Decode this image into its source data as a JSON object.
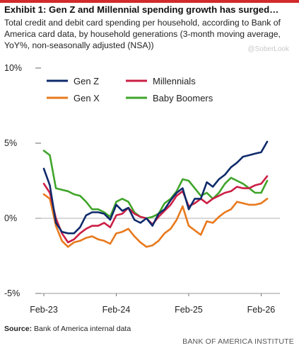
{
  "header": {
    "title": "Exhibit 1: Gen Z and Millennial spending growth has surged…",
    "subtitle": "Total credit and debit card spending per household, according to Bank of America card data, by household generations (3-month moving average, YoY%, non-seasonally adjusted (NSA))",
    "watermark": "@SoberLook"
  },
  "footer": {
    "source_label": "Source:",
    "source_text": " Bank of America internal data",
    "brand": "BANK OF AMERICA INSTITUTE"
  },
  "colors": {
    "Gen Z": "#0f2a6b",
    "Millennials": "#cc1f45",
    "Gen X": "#e8791d",
    "Baby Boomers": "#3fa52a"
  },
  "chart_data": {
    "type": "line",
    "ylim": [
      -5,
      10
    ],
    "yticks": [
      "10%",
      "5%",
      "0%",
      "-5%"
    ],
    "ytick_values": [
      10,
      5,
      0,
      -5
    ],
    "xticks": [
      "Feb-23",
      "Feb-24",
      "Feb-25",
      "Feb-26"
    ],
    "xtick_index": [
      0,
      12,
      24,
      36
    ],
    "legend_position": "top",
    "grid": false,
    "series": [
      {
        "name": "Gen Z",
        "values": [
          3.3,
          2.2,
          -0.3,
          -0.9,
          -1.0,
          -1.0,
          -0.6,
          0.2,
          0.4,
          0.4,
          0.3,
          -0.1,
          0.9,
          0.5,
          0.7,
          -0.1,
          -0.3,
          0.0,
          -0.5,
          0.3,
          0.6,
          1.2,
          1.7,
          2.0,
          0.6,
          1.3,
          1.3,
          2.4,
          2.1,
          2.6,
          2.9,
          3.4,
          3.7,
          4.1,
          4.2,
          4.3,
          4.4,
          5.1
        ]
      },
      {
        "name": "Millennials",
        "values": [
          2.3,
          1.7,
          0.0,
          -1.0,
          -1.6,
          -1.4,
          -1.0,
          -0.7,
          -0.5,
          -0.5,
          -0.3,
          -0.6,
          0.2,
          0.3,
          0.7,
          0.3,
          0.1,
          0.0,
          -0.4,
          0.1,
          0.5,
          0.9,
          1.5,
          1.8,
          0.8,
          1.0,
          1.3,
          1.0,
          1.3,
          1.5,
          1.7,
          1.8,
          2.1,
          2.0,
          2.0,
          2.2,
          2.3,
          2.8
        ]
      },
      {
        "name": "Gen X",
        "values": [
          1.6,
          1.3,
          -0.5,
          -1.5,
          -1.9,
          -1.6,
          -1.5,
          -1.3,
          -1.2,
          -1.4,
          -1.5,
          -1.7,
          -1.0,
          -0.9,
          -0.7,
          -1.2,
          -1.6,
          -1.9,
          -1.8,
          -1.5,
          -1.0,
          -0.7,
          -0.1,
          0.8,
          -0.5,
          -0.8,
          -1.1,
          -0.2,
          -0.3,
          0.1,
          0.4,
          0.6,
          1.1,
          1.0,
          0.9,
          0.9,
          1.0,
          1.3
        ]
      },
      {
        "name": "Baby Boomers",
        "values": [
          4.5,
          4.2,
          2.0,
          1.9,
          1.8,
          1.6,
          1.5,
          1.1,
          0.6,
          0.6,
          0.4,
          0.1,
          1.1,
          1.3,
          1.1,
          0.4,
          0.1,
          0.0,
          0.1,
          0.3,
          1.0,
          1.3,
          1.8,
          2.6,
          2.5,
          2.0,
          1.5,
          1.7,
          1.3,
          1.7,
          2.3,
          2.7,
          2.5,
          2.3,
          2.0,
          1.7,
          1.7,
          2.5
        ]
      }
    ]
  }
}
